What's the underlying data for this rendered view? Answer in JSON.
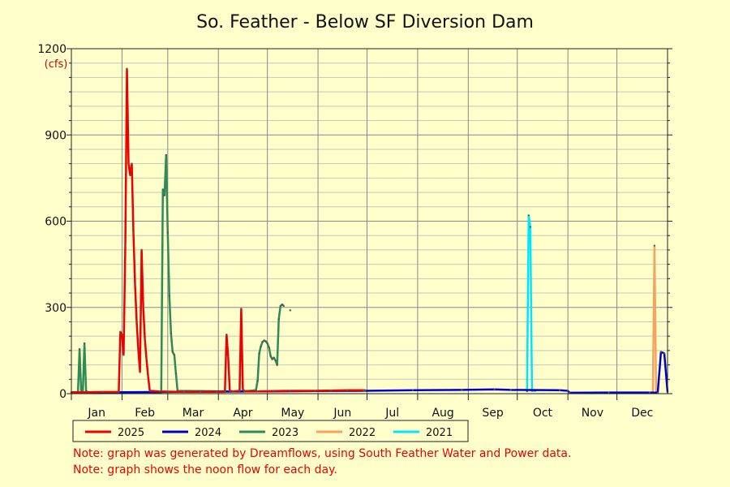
{
  "chart_data": {
    "type": "line",
    "title": "So. Feather - Below SF Diversion Dam",
    "ylabel": "(cfs)",
    "ylim": [
      0,
      1200
    ],
    "y_ticks": [
      0,
      300,
      600,
      900,
      1200
    ],
    "x_unit": "day of year",
    "xlim": [
      1,
      366
    ],
    "months": [
      "Jan",
      "Feb",
      "Mar",
      "Apr",
      "May",
      "Jun",
      "Jul",
      "Aug",
      "Sep",
      "Oct",
      "Nov",
      "Dec"
    ],
    "grid": true,
    "legend_position": "bottom",
    "series": [
      {
        "name": "2025",
        "color": "#ee0000",
        "points": [
          [
            1,
            5
          ],
          [
            10,
            5
          ],
          [
            20,
            6
          ],
          [
            30,
            6
          ],
          [
            31,
            215
          ],
          [
            32,
            205
          ],
          [
            33,
            135
          ],
          [
            34,
            515
          ],
          [
            35,
            1130
          ],
          [
            36,
            800
          ],
          [
            37,
            760
          ],
          [
            38,
            800
          ],
          [
            39,
            560
          ],
          [
            40,
            380
          ],
          [
            41,
            250
          ],
          [
            42,
            150
          ],
          [
            43,
            75
          ],
          [
            44,
            500
          ],
          [
            45,
            300
          ],
          [
            46,
            190
          ],
          [
            47,
            120
          ],
          [
            48,
            60
          ],
          [
            49,
            10
          ],
          [
            55,
            8
          ],
          [
            60,
            7
          ],
          [
            70,
            6
          ],
          [
            80,
            6
          ],
          [
            90,
            6
          ],
          [
            95,
            6
          ],
          [
            96,
            205
          ],
          [
            97,
            130
          ],
          [
            98,
            10
          ],
          [
            100,
            8
          ],
          [
            104,
            10
          ],
          [
            105,
            295
          ],
          [
            106,
            15
          ],
          [
            107,
            8
          ],
          [
            115,
            8
          ],
          [
            125,
            9
          ],
          [
            135,
            10
          ],
          [
            150,
            10
          ],
          [
            160,
            11
          ],
          [
            170,
            12
          ],
          [
            180,
            12
          ],
          [
            181,
            12
          ]
        ]
      },
      {
        "name": "2024",
        "color": "#0000cc",
        "points": [
          [
            1,
            4
          ],
          [
            30,
            5
          ],
          [
            60,
            6
          ],
          [
            90,
            7
          ],
          [
            120,
            8
          ],
          [
            150,
            9
          ],
          [
            180,
            10
          ],
          [
            210,
            12
          ],
          [
            240,
            13
          ],
          [
            260,
            15
          ],
          [
            270,
            13
          ],
          [
            300,
            12
          ],
          [
            305,
            10
          ],
          [
            306,
            3
          ],
          [
            330,
            4
          ],
          [
            355,
            4
          ],
          [
            360,
            3
          ],
          [
            362,
            145
          ],
          [
            364,
            140
          ],
          [
            366,
            5
          ]
        ]
      },
      {
        "name": "2023",
        "color": "#2e8b57",
        "points": [
          [
            1,
            5
          ],
          [
            5,
            5
          ],
          [
            6,
            155
          ],
          [
            7,
            5
          ],
          [
            8,
            5
          ],
          [
            9,
            175
          ],
          [
            10,
            10
          ],
          [
            11,
            5
          ],
          [
            55,
            5
          ],
          [
            56,
            5
          ],
          [
            57,
            710
          ],
          [
            58,
            690
          ],
          [
            59,
            830
          ],
          [
            60,
            560
          ],
          [
            61,
            340
          ],
          [
            62,
            210
          ],
          [
            63,
            145
          ],
          [
            64,
            135
          ],
          [
            65,
            70
          ],
          [
            66,
            10
          ],
          [
            100,
            8
          ],
          [
            110,
            10
          ],
          [
            114,
            12
          ],
          [
            115,
            45
          ],
          [
            116,
            140
          ],
          [
            117,
            165
          ],
          [
            118,
            180
          ],
          [
            119,
            185
          ],
          [
            120,
            182
          ],
          [
            121,
            175
          ],
          [
            122,
            160
          ],
          [
            123,
            130
          ],
          [
            124,
            120
          ],
          [
            125,
            125
          ],
          [
            126,
            115
          ],
          [
            127,
            100
          ],
          [
            128,
            260
          ],
          [
            129,
            305
          ],
          [
            130,
            310
          ],
          [
            131,
            305
          ]
        ]
      },
      {
        "name": "2022",
        "color": "#f4a460",
        "points": [
          [
            357,
            5
          ],
          [
            358,
            515
          ],
          [
            359,
            5
          ]
        ]
      },
      {
        "name": "2021",
        "color": "#00e5ff",
        "points": [
          [
            280,
            8
          ],
          [
            281,
            620
          ],
          [
            282,
            580
          ],
          [
            283,
            10
          ],
          [
            285,
            10
          ]
        ]
      }
    ],
    "extra_points": [
      [
        135,
        290
      ]
    ],
    "notes": [
      "Note: graph was generated by Dreamflows, using South Feather Water and Power data.",
      "Note: graph shows the noon flow for each day."
    ]
  }
}
